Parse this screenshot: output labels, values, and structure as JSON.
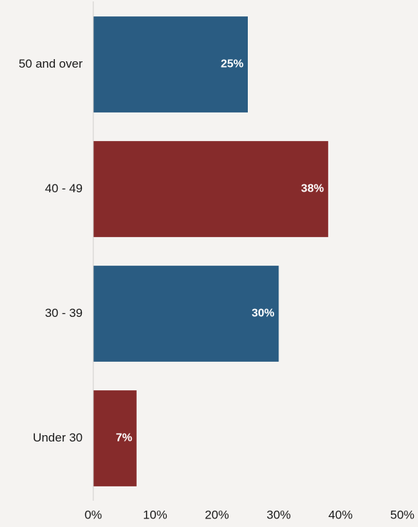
{
  "chart_data": {
    "type": "bar",
    "orientation": "horizontal",
    "categories": [
      "50 and over",
      "40 - 49",
      "30 - 39",
      "Under 30"
    ],
    "values": [
      25,
      38,
      30,
      7
    ],
    "data_labels": [
      "25%",
      "38%",
      "30%",
      "7%"
    ],
    "bar_colors": [
      "#2a5c82",
      "#862b2b",
      "#2a5c82",
      "#862b2b"
    ],
    "xlim": [
      0,
      50
    ],
    "xticks": [
      0,
      10,
      20,
      30,
      40,
      50
    ],
    "xtick_labels": [
      "0%",
      "10%",
      "20%",
      "30%",
      "40%",
      "50%"
    ],
    "grid": false,
    "legend": "none",
    "axis_color": "#cfcccb",
    "background": "#f5f3f1"
  }
}
